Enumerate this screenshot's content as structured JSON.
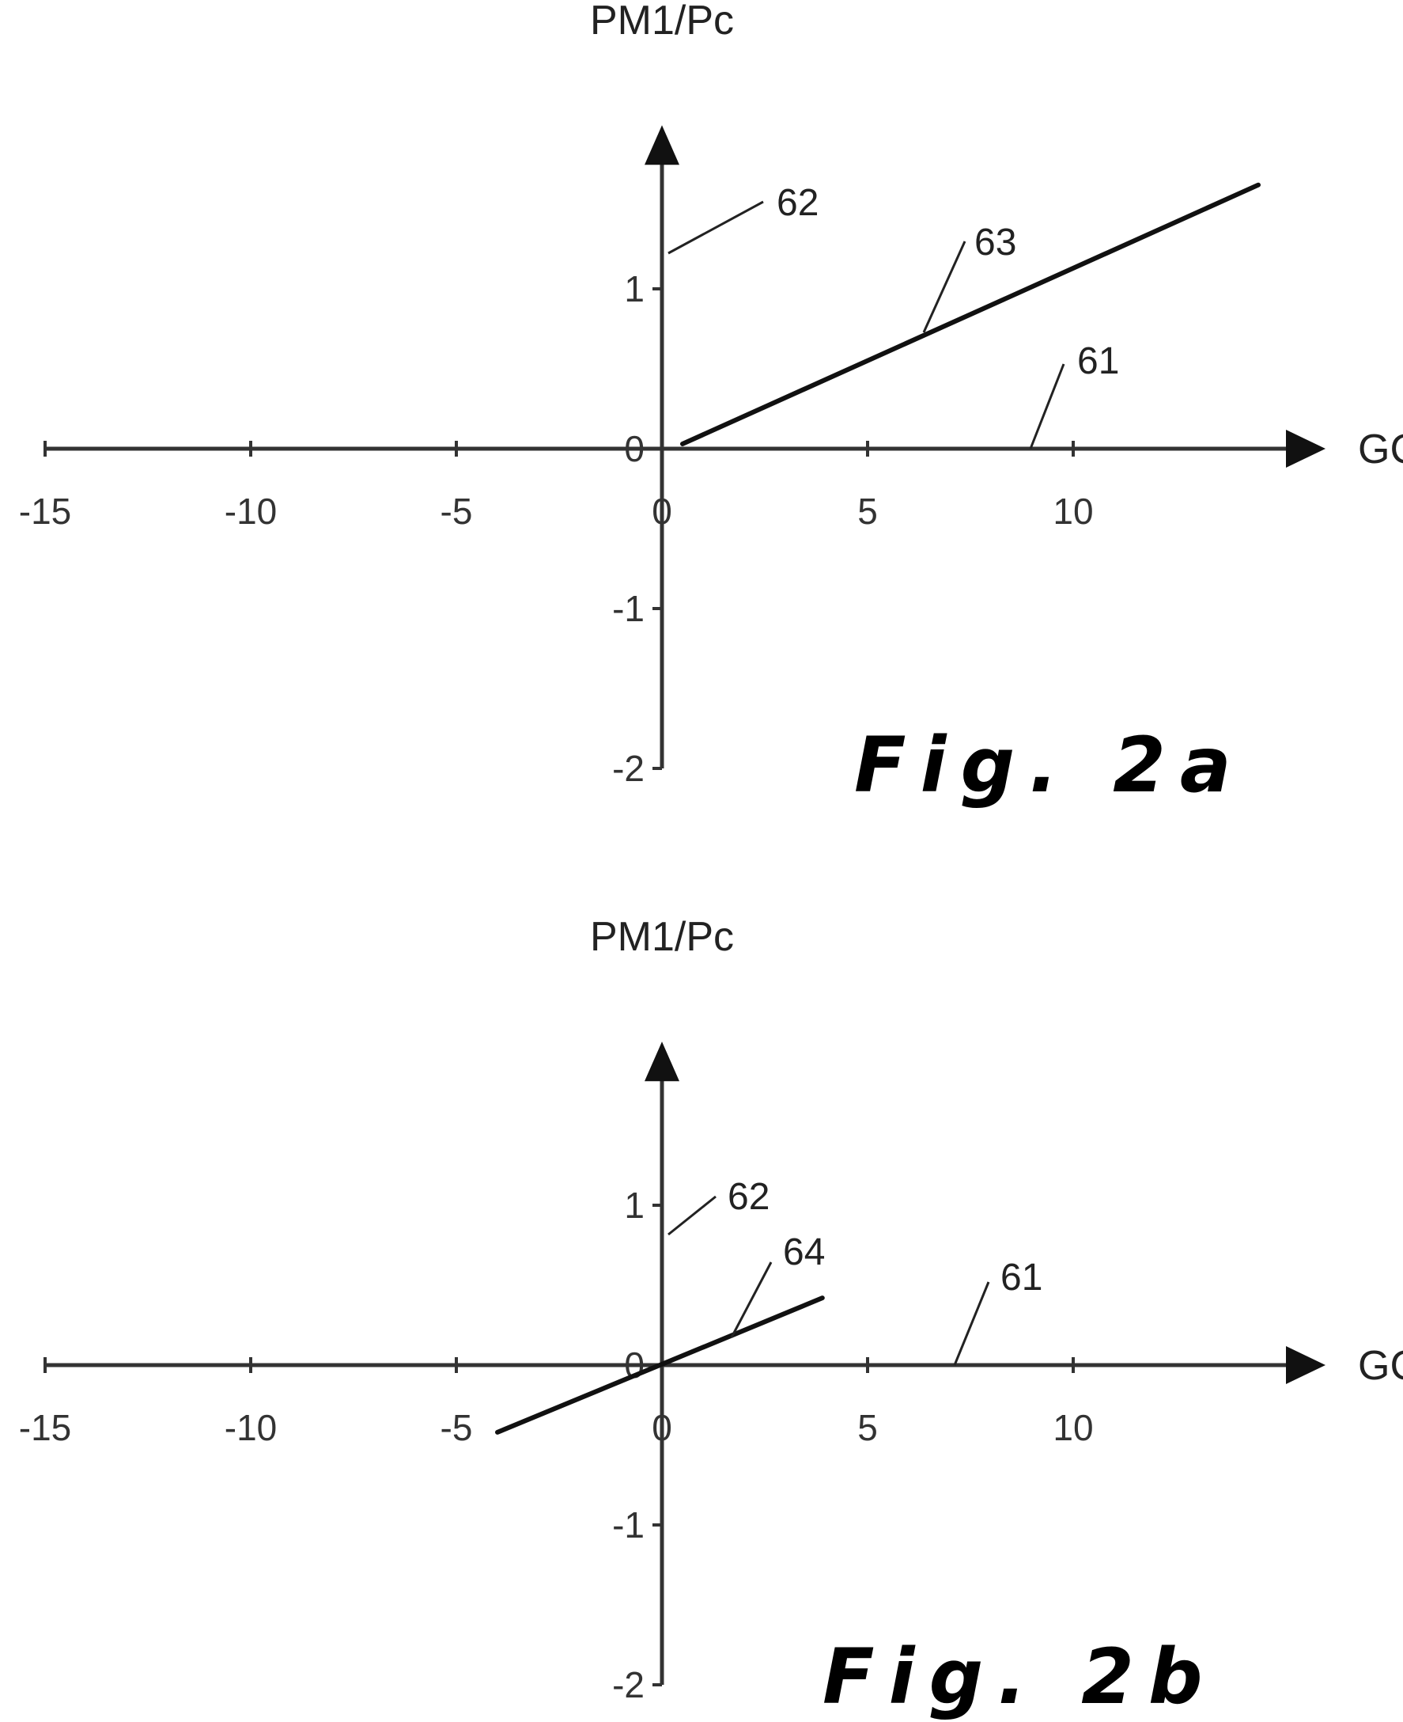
{
  "chart_data": [
    {
      "type": "line",
      "figure_label": "Fig. 2a",
      "xlabel": "GC",
      "ylabel": "PM1/Pc",
      "xlim": [
        -15,
        14.5
      ],
      "ylim": [
        -2,
        1.9
      ],
      "x_ticks": [
        -15,
        -10,
        -5,
        0,
        5,
        10
      ],
      "y_ticks": [
        1,
        0,
        -1,
        -2
      ],
      "series": [
        {
          "ref": "63",
          "x": [
            0.5,
            14.5
          ],
          "y": [
            0.03,
            1.65
          ]
        }
      ],
      "annotations": [
        {
          "text": "62",
          "target": "y-axis"
        },
        {
          "text": "63",
          "target": "line"
        },
        {
          "text": "61",
          "target": "x-axis"
        }
      ]
    },
    {
      "type": "line",
      "figure_label": "Fig. 2b",
      "xlabel": "GC",
      "ylabel": "PM1/Pc",
      "xlim": [
        -15,
        14.5
      ],
      "ylim": [
        -2,
        1.9
      ],
      "x_ticks": [
        -15,
        -10,
        -5,
        0,
        5,
        10
      ],
      "y_ticks": [
        1,
        0,
        -1,
        -2
      ],
      "series": [
        {
          "ref": "64",
          "x": [
            -4,
            3.9
          ],
          "y": [
            -0.42,
            0.42
          ]
        }
      ],
      "annotations": [
        {
          "text": "62",
          "target": "y-axis"
        },
        {
          "text": "64",
          "target": "line"
        },
        {
          "text": "61",
          "target": "x-axis"
        }
      ]
    }
  ]
}
